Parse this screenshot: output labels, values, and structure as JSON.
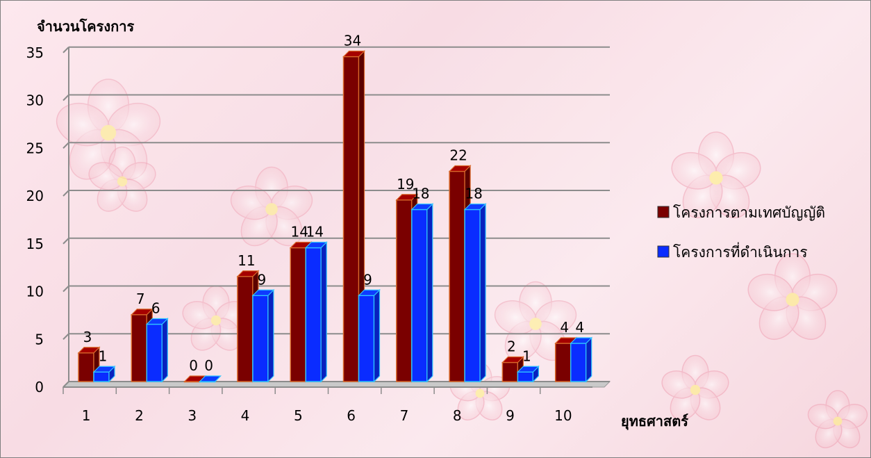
{
  "chart_data": {
    "type": "bar",
    "categories": [
      "1",
      "2",
      "3",
      "4",
      "5",
      "6",
      "7",
      "8",
      "9",
      "10"
    ],
    "series": [
      {
        "name": "โครงการตามเทศบัญญัติ",
        "values": [
          3,
          7,
          0,
          11,
          14,
          34,
          19,
          22,
          2,
          4
        ],
        "color": "#7a0000"
      },
      {
        "name": "โครงการที่ดำเนินการ",
        "values": [
          1,
          6,
          0,
          9,
          14,
          9,
          18,
          18,
          1,
          4
        ],
        "color": "#0a2cff"
      }
    ],
    "ylabel": "จำนวนโครงการ",
    "xlabel": "ยุทธศาสตร์",
    "ylim": [
      0,
      35
    ],
    "yticks": [
      0,
      5,
      10,
      15,
      20,
      25,
      30,
      35
    ],
    "grid": true,
    "legend_position": "right",
    "style": "3d-bar"
  }
}
